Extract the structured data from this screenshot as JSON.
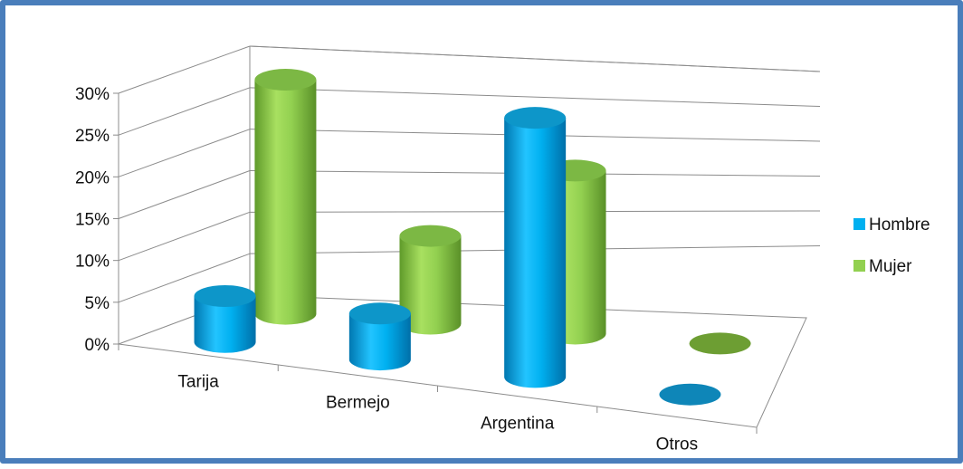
{
  "chart_data": {
    "type": "bar",
    "style": "3d-cylinder",
    "categories": [
      "Tarija",
      "Bermejo",
      "Argentina",
      "Otros"
    ],
    "series": [
      {
        "name": "Hombre",
        "values": [
          5.5,
          5.5,
          31,
          0
        ]
      },
      {
        "name": "Mujer",
        "values": [
          28,
          10.5,
          19.5,
          0
        ]
      }
    ],
    "y_ticks": [
      "0%",
      "5%",
      "10%",
      "15%",
      "20%",
      "25%",
      "30%"
    ],
    "ylim": [
      0,
      30
    ],
    "grid": true,
    "legend_position": "right"
  },
  "colors": {
    "hombre": "#00b0f0",
    "mujer": "#92d050",
    "frame": "#4a7ebb",
    "grid": "#8c8c8c"
  }
}
